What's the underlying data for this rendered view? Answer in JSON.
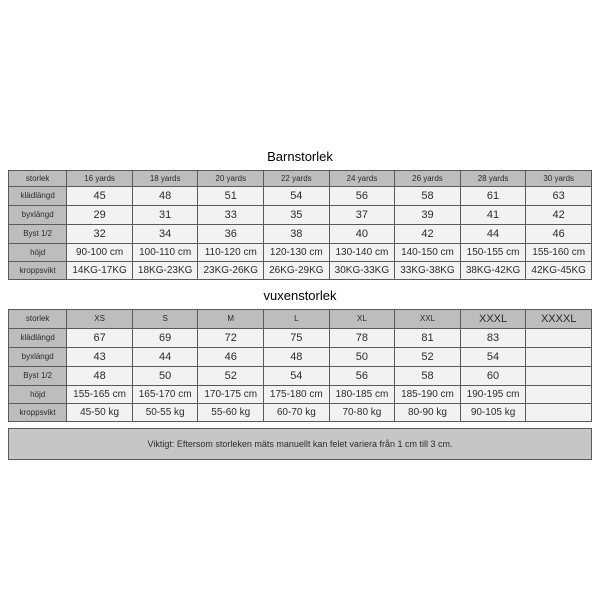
{
  "children": {
    "title": "Barnstorlek",
    "header_label": "storlek",
    "sizes": [
      "16 yards",
      "18 yards",
      "20 yards",
      "22 yards",
      "24 yards",
      "26 yards",
      "28 yards",
      "30 yards"
    ],
    "rows": [
      {
        "label": "klädlängd",
        "values": [
          "45",
          "48",
          "51",
          "54",
          "56",
          "58",
          "61",
          "63"
        ]
      },
      {
        "label": "byxlängd",
        "values": [
          "29",
          "31",
          "33",
          "35",
          "37",
          "39",
          "41",
          "42"
        ]
      },
      {
        "label": "Byst 1/2",
        "values": [
          "32",
          "34",
          "36",
          "38",
          "40",
          "42",
          "44",
          "46"
        ]
      },
      {
        "label": "höjd",
        "values": [
          "90-100 cm",
          "100-110 cm",
          "110-120 cm",
          "120-130 cm",
          "130-140 cm",
          "140-150 cm",
          "150-155 cm",
          "155-160 cm"
        ]
      },
      {
        "label": "kroppsvikt",
        "values": [
          "14KG-17KG",
          "18KG-23KG",
          "23KG-26KG",
          "26KG-29KG",
          "30KG-33KG",
          "33KG-38KG",
          "38KG-42KG",
          "42KG-45KG"
        ]
      }
    ]
  },
  "adult": {
    "title": "vuxenstorlek",
    "header_label": "storlek",
    "sizes": [
      "XS",
      "S",
      "M",
      "L",
      "XL",
      "XXL",
      "XXXL",
      "XXXXL"
    ],
    "rows": [
      {
        "label": "klädlängd",
        "values": [
          "67",
          "69",
          "72",
          "75",
          "78",
          "81",
          "83",
          ""
        ]
      },
      {
        "label": "byxlängd",
        "values": [
          "43",
          "44",
          "46",
          "48",
          "50",
          "52",
          "54",
          ""
        ]
      },
      {
        "label": "Byst 1/2",
        "values": [
          "48",
          "50",
          "52",
          "54",
          "56",
          "58",
          "60",
          ""
        ]
      },
      {
        "label": "höjd",
        "values": [
          "155-165 cm",
          "165-170 cm",
          "170-175 cm",
          "175-180 cm",
          "180-185 cm",
          "185-190 cm",
          "190-195 cm",
          ""
        ]
      },
      {
        "label": "kroppsvikt",
        "values": [
          "45-50 kg",
          "50-55 kg",
          "55-60 kg",
          "60-70 kg",
          "70-80 kg",
          "80-90 kg",
          "90-105 kg",
          ""
        ]
      }
    ]
  },
  "note": "Viktigt: Eftersom storleken mäts manuellt kan felet variera från 1 cm till 3 cm.",
  "style": {
    "header_bg": "#bdbdbd",
    "cell_bg": "#f2f2f2",
    "note_bg": "#c6c6c6",
    "border_color": "#5a5a5a",
    "text_color": "#2b2b2b",
    "title_fontsize": 13,
    "header_fontsize": 8,
    "data_fontsize": 10
  }
}
